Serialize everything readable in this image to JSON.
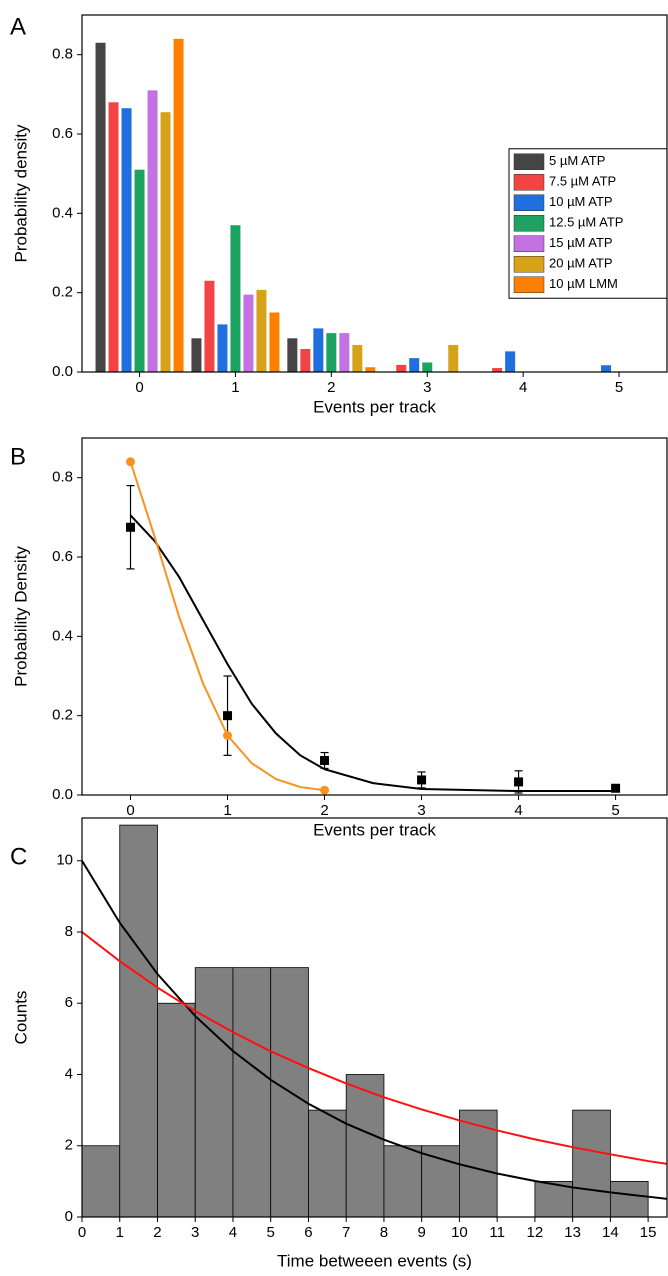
{
  "chart_data": [
    {
      "type": "bar",
      "panel_label": "A",
      "x_label": "Events per track",
      "y_label": "Probability density",
      "categories": [
        "0",
        "1",
        "2",
        "3",
        "4",
        "5"
      ],
      "series": [
        {
          "name": "5 µM ATP",
          "color": "#454545",
          "values": [
            0.83,
            0.085,
            0.085,
            0,
            0,
            0
          ]
        },
        {
          "name": "7.5 µM ATP",
          "color": "#f24444",
          "values": [
            0.68,
            0.23,
            0.058,
            0.018,
            0.01,
            0
          ]
        },
        {
          "name": "10 µM ATP",
          "color": "#1f6fe0",
          "values": [
            0.665,
            0.12,
            0.11,
            0.035,
            0.052,
            0.017
          ]
        },
        {
          "name": "12.5 µM ATP",
          "color": "#1ca362",
          "values": [
            0.51,
            0.37,
            0.098,
            0.024,
            0,
            0
          ]
        },
        {
          "name": "15 µM ATP",
          "color": "#c272e2",
          "values": [
            0.71,
            0.195,
            0.098,
            0,
            0,
            0
          ]
        },
        {
          "name": "20 µM ATP",
          "color": "#d6a21a",
          "values": [
            0.655,
            0.207,
            0.068,
            0.068,
            0,
            0
          ]
        },
        {
          "name": "10 µM LMM",
          "color": "#ff8000",
          "values": [
            0.84,
            0.15,
            0.012,
            0,
            0,
            0
          ]
        }
      ],
      "ylim": [
        0,
        0.9
      ],
      "yticks": [
        {
          "value": 0,
          "label": "0.0"
        },
        0.2,
        0.4,
        0.6,
        0.8
      ],
      "legend": "center right"
    },
    {
      "type": "line",
      "panel_label": "B",
      "x_label": "Events per track",
      "y_label": "Probability Density",
      "series": [
        {
          "color": "#000000",
          "marker": "square",
          "x": [
            0,
            1,
            2,
            3,
            4,
            5
          ],
          "values": [
            0.675,
            0.2,
            0.087,
            0.038,
            0.033,
            0.017
          ],
          "errors": [
            0.105,
            0.1,
            0.02,
            0.02,
            0.028,
            0.004
          ]
        },
        {
          "color": "#000000",
          "marker": "none",
          "x": [
            0,
            0.25,
            0.5,
            0.75,
            1,
            1.25,
            1.5,
            1.75,
            2,
            2.5,
            3,
            4,
            5
          ],
          "values": [
            0.705,
            0.64,
            0.55,
            0.44,
            0.33,
            0.23,
            0.155,
            0.1,
            0.065,
            0.03,
            0.015,
            0.01,
            0.01
          ]
        },
        {
          "color": "#f7931e",
          "marker": "none",
          "x": [
            0,
            0.25,
            0.5,
            0.75,
            1,
            1.25,
            1.5,
            1.75,
            2
          ],
          "values": [
            0.84,
            0.65,
            0.45,
            0.28,
            0.15,
            0.08,
            0.04,
            0.02,
            0.012
          ]
        },
        {
          "color": "#f7931e",
          "marker": "circle",
          "x": [
            0,
            1,
            2
          ],
          "values": [
            0.84,
            0.15,
            0.012
          ]
        }
      ],
      "xlim": [
        -0.5,
        5.53
      ],
      "xticks": [
        0,
        1,
        2,
        3,
        4,
        5
      ],
      "ylim": [
        0,
        0.9
      ],
      "yticks": [
        {
          "value": 0,
          "label": "0.0"
        },
        0.2,
        0.4,
        0.6,
        0.8
      ]
    },
    {
      "type": "histogram",
      "panel_label": "C",
      "x_label": "Time betweeen events (s)",
      "y_label": "Counts",
      "bins": [
        0,
        1,
        2,
        3,
        4,
        5,
        6,
        7,
        8,
        9,
        10,
        11,
        12,
        13,
        14,
        15
      ],
      "values": [
        2,
        11,
        6,
        7,
        7,
        7,
        3,
        4,
        2,
        2,
        3,
        0,
        1,
        3,
        1
      ],
      "color": "#808080",
      "series": [
        {
          "color": "#000000",
          "x": [
            0,
            1,
            2,
            3,
            4,
            5,
            6,
            7,
            8,
            9,
            10,
            11,
            12,
            13,
            14,
            15,
            15.5
          ],
          "values": [
            10,
            8.26,
            6.82,
            5.64,
            4.66,
            3.85,
            3.18,
            2.62,
            2.17,
            1.79,
            1.48,
            1.22,
            1.01,
            0.83,
            0.69,
            0.57,
            0.51
          ]
        },
        {
          "color": "#ff1010",
          "x": [
            0,
            1,
            2,
            3,
            4,
            5,
            6,
            7,
            8,
            9,
            10,
            11,
            12,
            13,
            14,
            15,
            15.5
          ],
          "values": [
            8,
            7.18,
            6.44,
            5.78,
            5.19,
            4.65,
            4.18,
            3.75,
            3.36,
            3.02,
            2.71,
            2.43,
            2.18,
            1.96,
            1.76,
            1.57,
            1.49
          ]
        }
      ],
      "xlim": [
        0,
        15.5
      ],
      "xticks": [
        0,
        1,
        2,
        3,
        4,
        5,
        6,
        7,
        8,
        9,
        10,
        11,
        12,
        13,
        14,
        15
      ],
      "ylim": [
        0,
        11.2
      ],
      "yticks": [
        0,
        2,
        4,
        6,
        8,
        10
      ]
    }
  ]
}
